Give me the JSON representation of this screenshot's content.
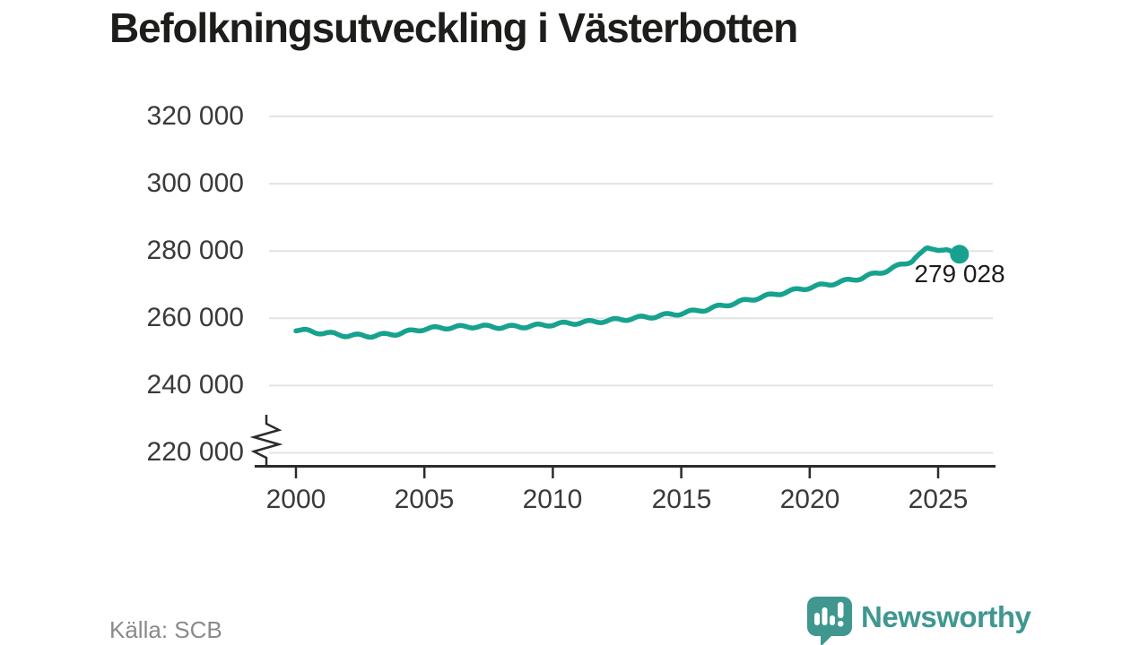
{
  "header": {
    "title": "Befolkningsutveckling i Västerbotten"
  },
  "source": {
    "label": "Källa: SCB"
  },
  "branding": {
    "name": "Newsworthy",
    "teal": "#3f9790"
  },
  "chart_data": {
    "type": "line",
    "title": "Befolkningsutveckling i Västerbotten",
    "xlabel": "",
    "ylabel": "",
    "grid": "horizontal",
    "axis_break_at_bottom": true,
    "xlim": [
      1999.4,
      2027.2
    ],
    "ylim": [
      218000,
      323000
    ],
    "x_ticks": [
      2000,
      2005,
      2010,
      2015,
      2020,
      2025
    ],
    "x_tick_labels": [
      "2000",
      "2005",
      "2010",
      "2015",
      "2020",
      "2025"
    ],
    "y_ticks": [
      220000,
      240000,
      260000,
      280000,
      300000,
      320000
    ],
    "y_tick_labels": [
      "220 000",
      "240 000",
      "260 000",
      "280 000",
      "300 000",
      "320 000"
    ],
    "line_color": "#17a28f",
    "grid_color": "#e3e3e3",
    "axis_color": "#2c2c2c",
    "seasonal_wiggle": 450,
    "last_point": {
      "x": 2025.83,
      "value": 279028,
      "label": "279 028"
    },
    "series": [
      {
        "points": [
          [
            2000,
            256600
          ],
          [
            2001,
            255700
          ],
          [
            2002,
            254900
          ],
          [
            2003,
            254800
          ],
          [
            2004,
            255500
          ],
          [
            2005,
            256900
          ],
          [
            2006,
            257300
          ],
          [
            2007,
            257600
          ],
          [
            2008,
            257400
          ],
          [
            2009,
            257600
          ],
          [
            2010,
            258200
          ],
          [
            2011,
            258700
          ],
          [
            2012,
            259200
          ],
          [
            2013,
            259900
          ],
          [
            2014,
            260600
          ],
          [
            2015,
            261500
          ],
          [
            2016,
            262700
          ],
          [
            2017,
            264400
          ],
          [
            2018,
            266100
          ],
          [
            2019,
            267700
          ],
          [
            2020,
            269200
          ],
          [
            2021,
            270500
          ],
          [
            2022,
            272000
          ],
          [
            2023,
            274200
          ],
          [
            2024,
            277200
          ],
          [
            2024.55,
            281000
          ],
          [
            2025.0,
            280150
          ],
          [
            2025.35,
            280400
          ],
          [
            2025.83,
            279028
          ]
        ]
      }
    ]
  }
}
